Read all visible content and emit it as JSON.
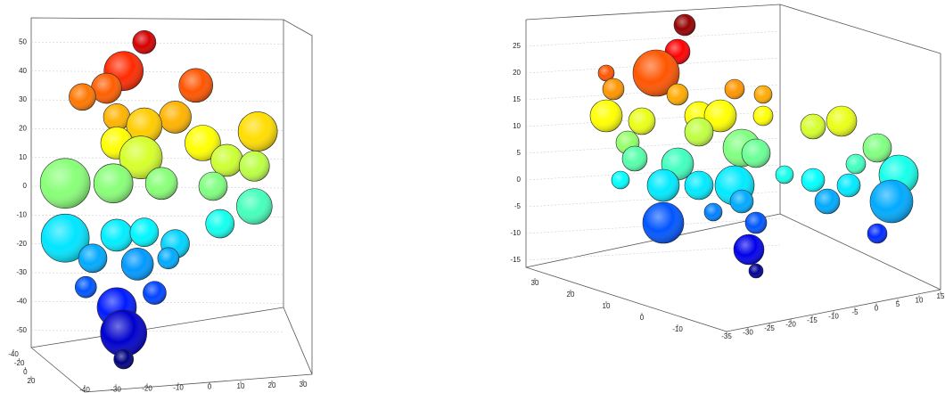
{
  "chart_data": [
    {
      "type": "scatter3d",
      "zlim": [
        -60,
        60
      ],
      "zticks": [
        -50,
        -40,
        -30,
        -20,
        -10,
        0,
        10,
        20,
        30,
        40,
        50
      ],
      "xlim": [
        -40,
        30
      ],
      "xticks": [
        -40,
        -30,
        -20,
        -10,
        0,
        10,
        20,
        30
      ],
      "ylim": [
        -40,
        20
      ],
      "yticks": [
        -40,
        -20,
        0,
        20
      ],
      "x": [
        -11,
        -17,
        -22,
        -29,
        4,
        -19,
        -2,
        -11,
        -19,
        -12,
        6,
        22,
        13,
        21,
        -34,
        -20,
        -6,
        9,
        21,
        11,
        -34,
        -19,
        -11,
        -2,
        -26,
        -13,
        -4,
        -28,
        -8,
        -19,
        -17,
        -17
      ],
      "z": [
        50,
        40,
        34,
        31,
        35,
        24,
        24,
        21,
        15,
        10,
        15,
        19,
        9,
        7,
        1,
        1,
        1,
        0,
        -7,
        -13,
        -18,
        -17,
        -16,
        -20,
        -25,
        -27,
        -25,
        -35,
        -37,
        -42,
        -51,
        -60
      ],
      "sizes": [
        13,
        22,
        17,
        15,
        19,
        15,
        18,
        20,
        18,
        24,
        20,
        22,
        18,
        17,
        28,
        22,
        18,
        16,
        20,
        16,
        27,
        18,
        16,
        16,
        16,
        18,
        12,
        12,
        13,
        22,
        26,
        11
      ]
    },
    {
      "type": "scatter3d",
      "zlim": [
        -18,
        30
      ],
      "zticks": [
        -15,
        -10,
        -5,
        0,
        5,
        10,
        15,
        20,
        25
      ],
      "xlim": [
        -35,
        15
      ],
      "xticks": [
        -35,
        -30,
        -25,
        -20,
        -15,
        -10,
        -5,
        0,
        5,
        10,
        15
      ],
      "ylim": [
        -10,
        30
      ],
      "yticks": [
        -10,
        0,
        10,
        20,
        30
      ],
      "x": [
        -19,
        -20,
        -23,
        -30,
        -29,
        -20,
        -12,
        -8,
        -30,
        -25,
        -17,
        -14,
        -8,
        -1,
        3,
        -27,
        -17,
        -11,
        8,
        -26,
        -20,
        -9,
        5,
        11,
        -28,
        -22,
        -17,
        -12,
        -5,
        -1,
        4,
        -22,
        -15,
        -11,
        1,
        10,
        -9,
        -10,
        8,
        -9
      ],
      "z": [
        29,
        24,
        20,
        20,
        17,
        16,
        17,
        16,
        12,
        11,
        12,
        12,
        12,
        10,
        11,
        7,
        9,
        6,
        6,
        4,
        3,
        5,
        3,
        1,
        0,
        -1,
        -1,
        -1,
        1,
        0,
        -1,
        -8,
        -6,
        -4,
        -4,
        -4,
        -8,
        -13,
        -10,
        -17
      ],
      "sizes": [
        12,
        14,
        26,
        9,
        12,
        12,
        11,
        10,
        18,
        15,
        16,
        18,
        11,
        14,
        17,
        13,
        16,
        21,
        16,
        14,
        18,
        16,
        11,
        22,
        10,
        18,
        16,
        22,
        10,
        13,
        13,
        23,
        10,
        13,
        14,
        24,
        12,
        17,
        11,
        8
      ]
    }
  ]
}
